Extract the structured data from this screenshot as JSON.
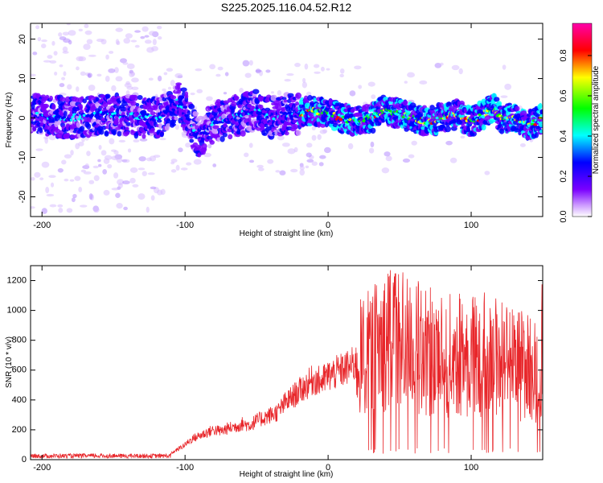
{
  "title": "S225.2025.116.04.52.R12",
  "chart_data": [
    {
      "type": "heatmap",
      "xlabel": "Height of straight line (km)",
      "ylabel": "Frequency (Hz)",
      "xlim": [
        -208,
        150
      ],
      "ylim": [
        -25,
        24
      ],
      "xticks": [
        -200,
        -100,
        0,
        100
      ],
      "yticks": [
        -20,
        -10,
        0,
        10,
        20
      ],
      "colorbar": {
        "label": "Normalized spectral amplitude",
        "range": [
          0,
          0.96
        ],
        "ticks": [
          0.0,
          0.2,
          0.4,
          0.6,
          0.8
        ],
        "colors": [
          "#ffffff",
          "#cc99ff",
          "#7a00ff",
          "#0000ff",
          "#00ffff",
          "#00ff00",
          "#ffff00",
          "#ff0000",
          "#ff00aa"
        ]
      },
      "ridge": {
        "x": [
          -208,
          -180,
          -150,
          -120,
          -110,
          -105,
          -100,
          -95,
          -90,
          -80,
          -70,
          -60,
          -50,
          -40,
          -30,
          -20,
          -10,
          0,
          10,
          20,
          30,
          40,
          50,
          60,
          70,
          80,
          90,
          100,
          110,
          115,
          120,
          130,
          140,
          150
        ],
        "y": [
          1,
          0,
          1,
          0,
          2,
          4,
          2,
          -2,
          -5,
          -1,
          0,
          1,
          2,
          0,
          1,
          1,
          2,
          1,
          0,
          -1,
          0,
          2,
          1,
          0,
          -1,
          0,
          1,
          -1,
          1,
          3,
          0,
          0,
          -2,
          0
        ]
      }
    },
    {
      "type": "line",
      "xlabel": "Height of straight line (km)",
      "ylabel": "SNR (10 * v/v)",
      "xlim": [
        -208,
        150
      ],
      "ylim": [
        0,
        1300
      ],
      "xticks": [
        -200,
        -100,
        0,
        100
      ],
      "yticks": [
        0,
        200,
        400,
        600,
        800,
        1000,
        1200
      ],
      "color": "#e8262a",
      "series": [
        {
          "x": [
            -208,
            -200,
            -190,
            -180,
            -170,
            -160,
            -150,
            -140,
            -130,
            -120,
            -110,
            -105,
            -100,
            -95,
            -90,
            -85,
            -80,
            -75,
            -70,
            -65,
            -60,
            -55,
            -50,
            -45,
            -40,
            -35,
            -30,
            -25,
            -20,
            -15,
            -10,
            -5,
            0,
            5,
            10,
            15,
            20,
            25,
            30,
            35,
            40,
            45,
            50,
            55,
            60,
            65,
            70,
            75,
            80,
            85,
            90,
            95,
            100,
            105,
            110,
            115,
            120,
            125,
            130,
            135,
            140,
            145,
            150
          ],
          "y": [
            20,
            25,
            20,
            30,
            25,
            28,
            30,
            25,
            28,
            30,
            40,
            70,
            100,
            140,
            160,
            180,
            200,
            190,
            210,
            220,
            240,
            230,
            260,
            280,
            300,
            320,
            380,
            420,
            460,
            500,
            540,
            520,
            560,
            580,
            600,
            620,
            650,
            700,
            720,
            760,
            800,
            840,
            820,
            780,
            760,
            740,
            720,
            700,
            720,
            700,
            690,
            710,
            680,
            700,
            720,
            690,
            700,
            680,
            650,
            640,
            620,
            600,
            700
          ]
        }
      ],
      "noise": {
        "amp_before_20": 0.2,
        "amp_after_20": 0.6,
        "max": 1270
      }
    }
  ]
}
